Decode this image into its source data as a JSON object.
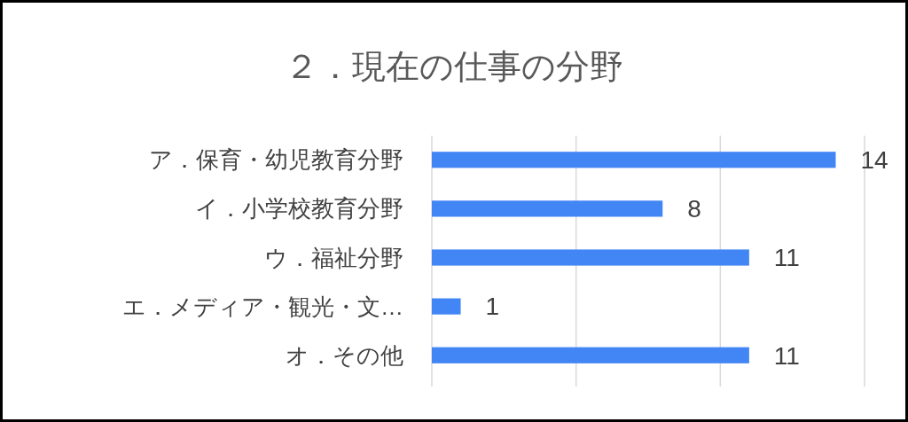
{
  "chart_data": {
    "type": "bar",
    "orientation": "horizontal",
    "title": "２．現在の仕事の分野",
    "categories": [
      "ア．保育・幼児教育分野",
      "イ．小学校教育分野",
      "ウ．福祉分野",
      "エ．メディア・観光・文…",
      "オ．その他"
    ],
    "values": [
      14,
      8,
      11,
      1,
      11
    ],
    "color": "#4285f4",
    "data_labels": true,
    "xlim": [
      0,
      15
    ],
    "xticks": [
      {
        "value": 0,
        "label": null
      },
      {
        "value": 5,
        "label": null
      },
      {
        "value": 10,
        "label": null
      },
      {
        "value": 15,
        "label": null
      }
    ],
    "grid": "x",
    "tick_labels": "y"
  }
}
